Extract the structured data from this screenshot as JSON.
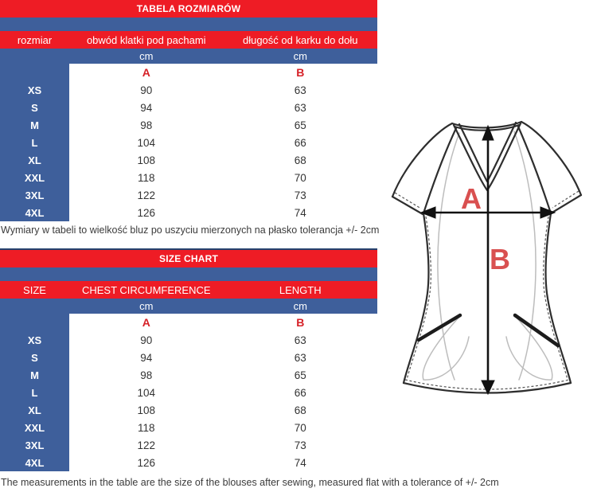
{
  "colors": {
    "table_red": "#ee1c25",
    "table_blue": "#3e5f9b",
    "navy_border": "#24426e",
    "table_letter_red": "#d61f26",
    "diagram_label_red": "#d95050",
    "value_text": "#333333"
  },
  "tables": [
    {
      "title": "TABELA ROZMIARÓW",
      "columns": [
        "rozmiar",
        "obwód klatki pod pachami",
        "długość od karku do dołu"
      ],
      "units": [
        "cm",
        "cm"
      ],
      "letters": [
        "A",
        "B"
      ],
      "rows": [
        {
          "size": "XS",
          "a": "90",
          "b": "63"
        },
        {
          "size": "S",
          "a": "94",
          "b": "63"
        },
        {
          "size": "M",
          "a": "98",
          "b": "65"
        },
        {
          "size": "L",
          "a": "104",
          "b": "66"
        },
        {
          "size": "XL",
          "a": "108",
          "b": "68"
        },
        {
          "size": "XXL",
          "a": "118",
          "b": "70"
        },
        {
          "size": "3XL",
          "a": "122",
          "b": "73"
        },
        {
          "size": "4XL",
          "a": "126",
          "b": "74"
        }
      ],
      "note": "Wymiary w tabeli to wielkość bluz po uszyciu mierzonych na płasko tolerancja +/- 2cm"
    },
    {
      "title": "SIZE CHART",
      "columns": [
        "SIZE",
        "CHEST CIRCUMFERENCE",
        "LENGTH"
      ],
      "units": [
        "cm",
        "cm"
      ],
      "letters": [
        "A",
        "B"
      ],
      "rows": [
        {
          "size": "XS",
          "a": "90",
          "b": "63"
        },
        {
          "size": "S",
          "a": "94",
          "b": "63"
        },
        {
          "size": "M",
          "a": "98",
          "b": "65"
        },
        {
          "size": "L",
          "a": "104",
          "b": "66"
        },
        {
          "size": "XL",
          "a": "108",
          "b": "68"
        },
        {
          "size": "XXL",
          "a": "118",
          "b": "70"
        },
        {
          "size": "3XL",
          "a": "122",
          "b": "73"
        },
        {
          "size": "4XL",
          "a": "126",
          "b": "74"
        }
      ],
      "note": "The measurements in the table are the size of the blouses after sewing, measured flat with a tolerance of +/- 2cm"
    }
  ],
  "diagram": {
    "label_a": "A",
    "label_b": "B"
  }
}
